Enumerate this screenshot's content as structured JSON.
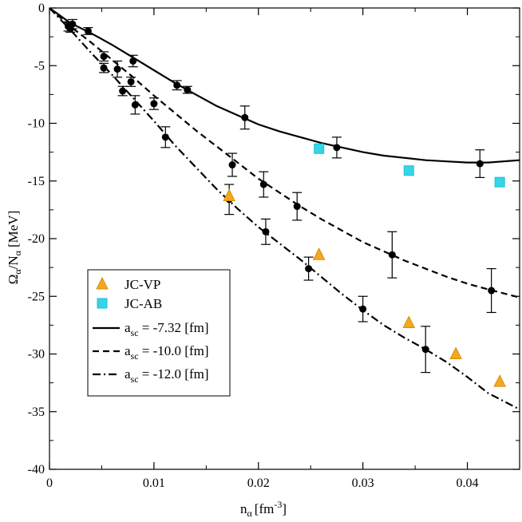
{
  "chart_data": {
    "type": "scatter",
    "title": "",
    "xlabel": {
      "main": "n",
      "sub": "α",
      "unit": "[fm",
      "sup": "-3",
      "close": "]"
    },
    "ylabel": {
      "a": "Ω",
      "asub": "α",
      "slash": "/N",
      "bsub": "α",
      "unit": "[MeV]"
    },
    "xlim": [
      0,
      0.045
    ],
    "ylim": [
      -40,
      0
    ],
    "xticks": [
      0,
      0.01,
      0.02,
      0.03,
      0.04
    ],
    "xtick_labels": [
      "0",
      "0.01",
      "0.02",
      "0.03",
      "0.04"
    ],
    "yticks": [
      0,
      -5,
      -10,
      -15,
      -20,
      -25,
      -30,
      -35,
      -40
    ],
    "ytick_labels": [
      "0",
      "-5",
      "-10",
      "-15",
      "-20",
      "-25",
      "-30",
      "-35",
      "-40"
    ],
    "grid": false,
    "legend_position": "bottom-left",
    "legend": [
      {
        "label": "JC-VP",
        "marker": "triangle",
        "color": "#f5a623"
      },
      {
        "label": "JC-AB",
        "marker": "square",
        "color": "#33d6e6"
      },
      {
        "label_main": "a",
        "label_sub": "sc",
        "label_rest": " = -7.32 [fm]",
        "line": "solid"
      },
      {
        "label_main": "a",
        "label_sub": "sc",
        "label_rest": " = -10.0 [fm]",
        "line": "dashed"
      },
      {
        "label_main": "a",
        "label_sub": "sc",
        "label_rest": " = -12.0 [fm]",
        "line": "dashdot"
      }
    ],
    "series": [
      {
        "name": "a_sc = -7.32 [fm]",
        "style": "solid",
        "line": [
          [
            0,
            0
          ],
          [
            0.002,
            -1.3
          ],
          [
            0.004,
            -2.2
          ],
          [
            0.006,
            -3.2
          ],
          [
            0.008,
            -4.3
          ],
          [
            0.01,
            -5.4
          ],
          [
            0.012,
            -6.5
          ],
          [
            0.014,
            -7.5
          ],
          [
            0.016,
            -8.5
          ],
          [
            0.018,
            -9.3
          ],
          [
            0.02,
            -10.1
          ],
          [
            0.022,
            -10.7
          ],
          [
            0.024,
            -11.2
          ],
          [
            0.026,
            -11.7
          ],
          [
            0.028,
            -12.1
          ],
          [
            0.03,
            -12.5
          ],
          [
            0.032,
            -12.8
          ],
          [
            0.034,
            -13.0
          ],
          [
            0.036,
            -13.2
          ],
          [
            0.038,
            -13.3
          ],
          [
            0.04,
            -13.4
          ],
          [
            0.042,
            -13.4
          ],
          [
            0.045,
            -13.2
          ]
        ],
        "points": [
          {
            "x": 0.0022,
            "y": -1.4,
            "err": 0.4
          },
          {
            "x": 0.0037,
            "y": -2.0,
            "err": 0.3
          },
          {
            "x": 0.0052,
            "y": -4.2,
            "err": 0.4
          },
          {
            "x": 0.008,
            "y": -4.6,
            "err": 0.5
          },
          {
            "x": 0.0122,
            "y": -6.7,
            "err": 0.4
          },
          {
            "x": 0.0132,
            "y": -7.1,
            "err": 0.3
          },
          {
            "x": 0.0187,
            "y": -9.5,
            "err": 1.0
          },
          {
            "x": 0.0275,
            "y": -12.1,
            "err": 0.9
          },
          {
            "x": 0.0412,
            "y": -13.5,
            "err": 1.2
          }
        ]
      },
      {
        "name": "a_sc = -10.0 [fm]",
        "style": "dashed",
        "line": [
          [
            0,
            0
          ],
          [
            0.002,
            -1.6
          ],
          [
            0.004,
            -3.0
          ],
          [
            0.006,
            -4.5
          ],
          [
            0.008,
            -6.0
          ],
          [
            0.01,
            -7.6
          ],
          [
            0.012,
            -9.1
          ],
          [
            0.014,
            -10.6
          ],
          [
            0.016,
            -12.0
          ],
          [
            0.018,
            -13.4
          ],
          [
            0.02,
            -14.8
          ],
          [
            0.022,
            -16.0
          ],
          [
            0.024,
            -17.2
          ],
          [
            0.026,
            -18.3
          ],
          [
            0.028,
            -19.3
          ],
          [
            0.03,
            -20.3
          ],
          [
            0.032,
            -21.1
          ],
          [
            0.034,
            -21.9
          ],
          [
            0.036,
            -22.6
          ],
          [
            0.038,
            -23.3
          ],
          [
            0.04,
            -23.9
          ],
          [
            0.042,
            -24.4
          ],
          [
            0.045,
            -25.1
          ]
        ],
        "points": [
          {
            "x": 0.0018,
            "y": -1.6,
            "err": 0.4
          },
          {
            "x": 0.0052,
            "y": -5.2,
            "err": 0.4
          },
          {
            "x": 0.0065,
            "y": -5.3,
            "err": 0.7
          },
          {
            "x": 0.0078,
            "y": -6.4,
            "err": 0.4
          },
          {
            "x": 0.01,
            "y": -8.3,
            "err": 0.5
          },
          {
            "x": 0.0175,
            "y": -13.6,
            "err": 1.0
          },
          {
            "x": 0.0205,
            "y": -15.3,
            "err": 1.1
          },
          {
            "x": 0.0237,
            "y": -17.2,
            "err": 1.2
          },
          {
            "x": 0.0328,
            "y": -21.4,
            "err": 2.0
          },
          {
            "x": 0.0423,
            "y": -24.5,
            "err": 1.9
          }
        ]
      },
      {
        "name": "a_sc = -12.0 [fm]",
        "style": "dashdot",
        "line": [
          [
            0,
            0
          ],
          [
            0.002,
            -1.9
          ],
          [
            0.004,
            -3.9
          ],
          [
            0.006,
            -5.8
          ],
          [
            0.008,
            -7.8
          ],
          [
            0.01,
            -9.8
          ],
          [
            0.012,
            -11.9
          ],
          [
            0.014,
            -13.8
          ],
          [
            0.016,
            -15.7
          ],
          [
            0.018,
            -17.4
          ],
          [
            0.02,
            -19.0
          ],
          [
            0.022,
            -20.4
          ],
          [
            0.024,
            -21.8
          ],
          [
            0.026,
            -23.3
          ],
          [
            0.028,
            -24.8
          ],
          [
            0.03,
            -26.2
          ],
          [
            0.032,
            -27.5
          ],
          [
            0.034,
            -28.6
          ],
          [
            0.036,
            -29.6
          ],
          [
            0.038,
            -30.7
          ],
          [
            0.04,
            -32.0
          ],
          [
            0.042,
            -33.4
          ],
          [
            0.045,
            -34.8
          ]
        ],
        "points": [
          {
            "x": 0.002,
            "y": -1.8,
            "err": 0.3
          },
          {
            "x": 0.007,
            "y": -7.2,
            "err": 0.4
          },
          {
            "x": 0.0082,
            "y": -8.4,
            "err": 0.8
          },
          {
            "x": 0.0111,
            "y": -11.2,
            "err": 0.9
          },
          {
            "x": 0.0172,
            "y": -16.6,
            "err": 1.3
          },
          {
            "x": 0.0207,
            "y": -19.4,
            "err": 1.1
          },
          {
            "x": 0.0248,
            "y": -22.6,
            "err": 1.0
          },
          {
            "x": 0.03,
            "y": -26.1,
            "err": 1.1
          },
          {
            "x": 0.036,
            "y": -29.6,
            "err": 2.0
          }
        ]
      },
      {
        "name": "JC-VP",
        "style": "triangle",
        "color": "#f5a623",
        "points": [
          {
            "x": 0.0172,
            "y": -16.3
          },
          {
            "x": 0.0258,
            "y": -21.4
          },
          {
            "x": 0.0344,
            "y": -27.3
          },
          {
            "x": 0.0389,
            "y": -30.0
          },
          {
            "x": 0.0431,
            "y": -32.4
          }
        ]
      },
      {
        "name": "JC-AB",
        "style": "square",
        "color": "#33d6e6",
        "points": [
          {
            "x": 0.0258,
            "y": -12.2
          },
          {
            "x": 0.0344,
            "y": -14.1
          },
          {
            "x": 0.0431,
            "y": -15.1
          }
        ]
      }
    ]
  }
}
